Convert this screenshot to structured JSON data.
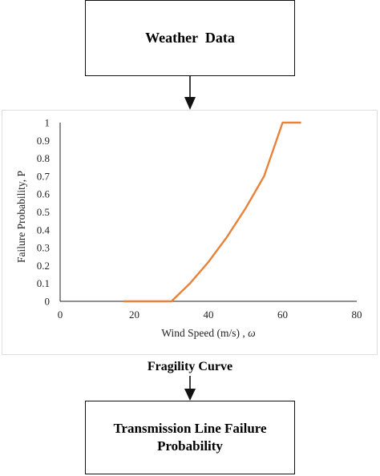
{
  "top_box": {
    "label": "Weather  Data"
  },
  "bottom_box": {
    "label": "Transmission Line Failure Probability"
  },
  "caption": "Fragility Curve",
  "colors": {
    "curve": "#e8823a",
    "box_border": "#111111",
    "panel_border": "#dedede"
  },
  "chart_data": {
    "type": "line",
    "xlabel": "Wind Speed (m/s) , ",
    "xlabel_symbol": "ω",
    "ylabel": "Failure Probability, P",
    "xlim": [
      0,
      80
    ],
    "ylim": [
      0,
      1
    ],
    "x_ticks": [
      0,
      20,
      40,
      60,
      80
    ],
    "y_ticks": [
      0,
      0.1,
      0.2,
      0.3,
      0.4,
      0.5,
      0.6,
      0.7,
      0.8,
      0.9,
      1
    ],
    "series": [
      {
        "color": "#e8823a",
        "x": [
          17,
          30,
          35,
          40,
          45,
          50,
          55,
          60,
          65
        ],
        "y": [
          0,
          0,
          0.1,
          0.22,
          0.36,
          0.52,
          0.7,
          1,
          1
        ]
      }
    ]
  }
}
